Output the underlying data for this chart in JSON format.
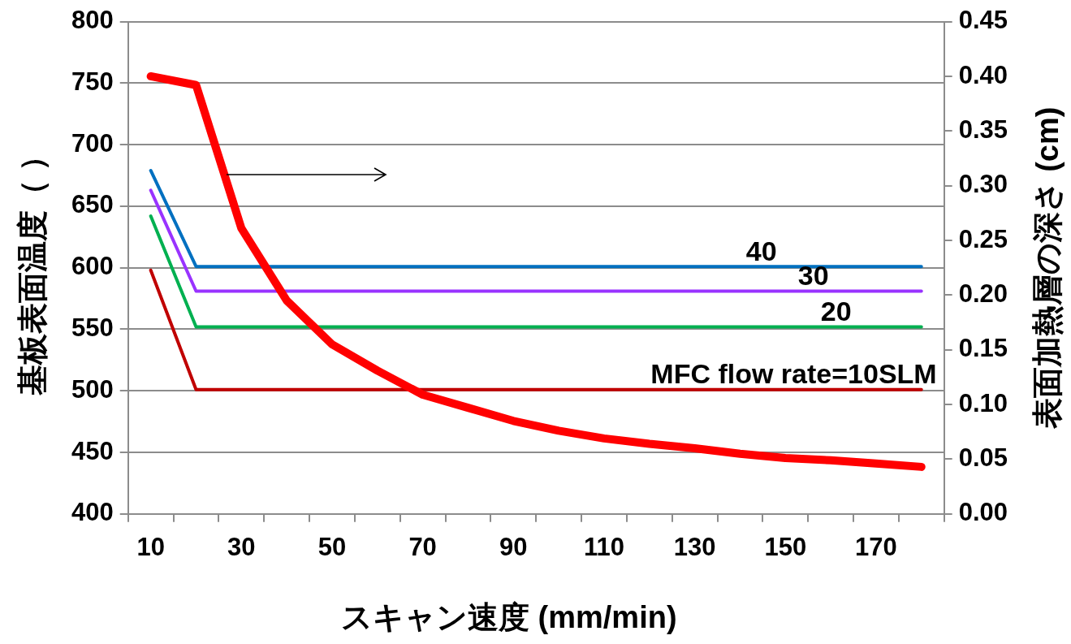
{
  "chart_data": {
    "type": "line",
    "xlabel": "スキャン速度 (mm/min)",
    "ylabel": "基板表面温度（ ）",
    "y2label": "表面加熱層の深さ (cm)",
    "categories": [
      "10",
      null,
      "30",
      null,
      "50",
      null,
      "70",
      null,
      "90",
      null,
      "110",
      null,
      "130",
      null,
      "150",
      null,
      "170",
      null
    ],
    "series": [
      {
        "color": "#0070c0",
        "values": [
          679,
          601,
          601,
          601,
          601,
          601,
          601,
          601,
          601,
          601,
          601,
          601,
          601,
          601,
          601,
          601,
          601,
          601
        ]
      },
      {
        "color": "#9933ff",
        "values": [
          663,
          581,
          581,
          581,
          581,
          581,
          581,
          581,
          581,
          581,
          581,
          581,
          581,
          581,
          581,
          581,
          581,
          581
        ]
      },
      {
        "color": "#00b050",
        "values": [
          642,
          552,
          552,
          552,
          552,
          552,
          552,
          552,
          552,
          552,
          552,
          552,
          552,
          552,
          552,
          552,
          552,
          552
        ]
      },
      {
        "color": "#c00000",
        "values": [
          598,
          501,
          501,
          501,
          501,
          501,
          501,
          501,
          501,
          501,
          501,
          501,
          501,
          501,
          501,
          501,
          501,
          501
        ]
      },
      {
        "color": "#ff0000",
        "axis": "y2",
        "values": [
          0.4,
          0.392,
          0.261,
          0.195,
          0.155,
          0.131,
          0.109,
          0.097,
          0.085,
          0.076,
          0.069,
          0.064,
          0.06,
          0.055,
          0.051,
          0.049,
          0.046,
          0.043
        ]
      }
    ],
    "ylim": [
      400,
      800
    ],
    "yticks": [
      400,
      450,
      500,
      550,
      600,
      650,
      700,
      750,
      800
    ],
    "y2lim": [
      0,
      0.45
    ],
    "y2ticks": [
      {
        "value": 0,
        "label": "0.00"
      },
      {
        "value": 0.05,
        "label": "0.05"
      },
      {
        "value": 0.1,
        "label": "0.10"
      },
      {
        "value": 0.15,
        "label": "0.15"
      },
      {
        "value": 0.2,
        "label": "0.20"
      },
      {
        "value": 0.25,
        "label": "0.25"
      },
      {
        "value": 0.3,
        "label": "0.30"
      },
      {
        "value": 0.35,
        "label": "0.35"
      },
      {
        "value": 0.4,
        "label": "0.40"
      },
      {
        "value": 0.45,
        "label": "0.45"
      }
    ],
    "annotations": [
      {
        "text": "40",
        "y": 601
      },
      {
        "text": "30",
        "y": 581
      },
      {
        "text": "20",
        "y": 552
      },
      {
        "text": "MFC flow rate=10SLM",
        "y": 501
      }
    ],
    "grid": "y",
    "legend": false,
    "marker": "none",
    "line_style": "solid"
  }
}
